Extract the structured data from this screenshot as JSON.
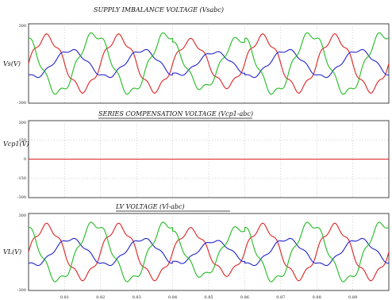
{
  "chart_data": [
    {
      "type": "line",
      "title": "SUPPLY IMBALANCE VOLTAGE (Vsabc)",
      "ylabel": "Vs(V)",
      "xlim": [
        0.8,
        0.9
      ],
      "ylim": [
        -300,
        300
      ],
      "yticks": [
        "300",
        "-300"
      ],
      "grid": true,
      "series": [
        {
          "color": "#dd2222",
          "amplitude": 200,
          "phase_deg": 0
        },
        {
          "color": "#2222cc",
          "amplitude": 100,
          "phase_deg": -120
        },
        {
          "color": "#22bb22",
          "amplitude": 220,
          "phase_deg": 120
        }
      ],
      "frequency_hz": 50,
      "unbalance_windows": [
        [
          0.84,
          0.86
        ]
      ]
    },
    {
      "type": "line",
      "title": "SERIES COMPENSATION VOLTAGE (Vcp1-abc)",
      "ylabel": "Vcp1(V)",
      "xlim": [
        0.8,
        0.9
      ],
      "ylim": [
        -300,
        300
      ],
      "yticks": [
        "300",
        "150",
        "0",
        "-150",
        "-300"
      ],
      "grid": true,
      "series": [
        {
          "color": "#dd2222",
          "constant": 0
        }
      ]
    },
    {
      "type": "line",
      "title": "LV VOLTAGE (Vl-abc)",
      "ylabel": "VL(V)",
      "xlim": [
        0.8,
        0.9
      ],
      "ylim": [
        -300,
        300
      ],
      "yticks": [
        "300",
        "-300"
      ],
      "grid": true,
      "series": [
        {
          "color": "#dd2222",
          "amplitude": 200,
          "phase_deg": 0
        },
        {
          "color": "#2222cc",
          "amplitude": 100,
          "phase_deg": -120
        },
        {
          "color": "#22bb22",
          "amplitude": 220,
          "phase_deg": 120
        }
      ],
      "frequency_hz": 50,
      "unbalance_windows": [
        [
          0.84,
          0.86
        ]
      ]
    }
  ],
  "xticks": [
    "0.81",
    "0.82",
    "0.83",
    "0.84",
    "0.85",
    "0.86",
    "0.87",
    "0.88",
    "0.89"
  ]
}
